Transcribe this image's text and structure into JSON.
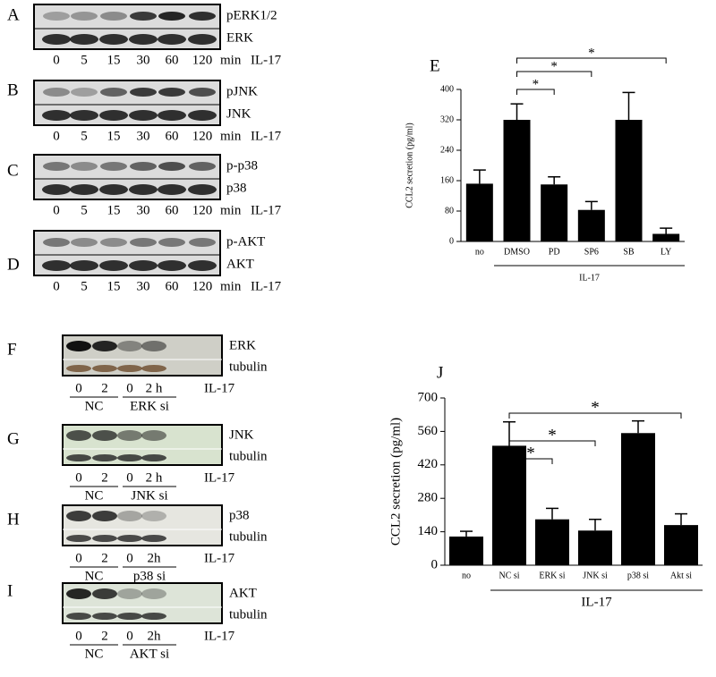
{
  "chart_data": [
    {
      "type": "bar",
      "panel": "E",
      "y_label": "CCL2 secretion (pg/ml)",
      "categories": [
        "no",
        "DMSO",
        "PD",
        "SP6",
        "SB",
        "LY"
      ],
      "values": [
        152,
        320,
        150,
        83,
        320,
        20
      ],
      "errors": [
        36,
        42,
        20,
        22,
        72,
        15
      ],
      "group_label": "IL-17",
      "ylim": [
        0,
        400
      ],
      "yticks": [
        0,
        80,
        160,
        240,
        320,
        400
      ],
      "color": "#000000",
      "significance": [
        {
          "from": "DMSO",
          "to": "PD",
          "label": "*"
        },
        {
          "from": "DMSO",
          "to": "SP6",
          "label": "*"
        },
        {
          "from": "DMSO",
          "to": "LY",
          "label": "*"
        }
      ]
    },
    {
      "type": "bar",
      "panel": "J",
      "y_label": "CCL2 secretion (pg/ml)",
      "categories": [
        "no",
        "NC si",
        "ERK si",
        "JNK si",
        "p38 si",
        "Akt si"
      ],
      "values": [
        120,
        500,
        192,
        145,
        553,
        168
      ],
      "errors": [
        22,
        100,
        46,
        47,
        51,
        47
      ],
      "group_label": "IL-17",
      "ylim": [
        0,
        700
      ],
      "yticks": [
        0,
        140,
        280,
        420,
        560,
        700
      ],
      "color": "#000000",
      "significance": [
        {
          "from": "NC si",
          "to": "ERK si",
          "label": "*"
        },
        {
          "from": "NC si",
          "to": "JNK si",
          "label": "*"
        },
        {
          "from": "NC si",
          "to": "Akt si",
          "label": "*"
        }
      ]
    }
  ],
  "blots": [
    {
      "panel": "A",
      "bands": [
        "pERK1/2",
        "ERK"
      ],
      "lanes": [
        "0",
        "5",
        "15",
        "30",
        "60",
        "120"
      ],
      "unit": "min",
      "treatment": "IL-17"
    },
    {
      "panel": "B",
      "bands": [
        "pJNK",
        "JNK"
      ],
      "lanes": [
        "0",
        "5",
        "15",
        "30",
        "60",
        "120"
      ],
      "unit": "min",
      "treatment": "IL-17"
    },
    {
      "panel": "C",
      "bands": [
        "p-p38",
        "p38"
      ],
      "lanes": [
        "0",
        "5",
        "15",
        "30",
        "60",
        "120"
      ],
      "unit": "min",
      "treatment": "IL-17"
    },
    {
      "panel": "D",
      "bands": [
        "p-AKT",
        "AKT"
      ],
      "lanes": [
        "0",
        "5",
        "15",
        "30",
        "60",
        "120"
      ],
      "unit": "min",
      "treatment": "IL-17"
    }
  ],
  "knockdowns": [
    {
      "panel": "F",
      "bands": [
        "ERK",
        "tubulin"
      ],
      "lanes": [
        "0",
        "2",
        "0",
        "2 h"
      ],
      "treatment": "IL-17",
      "groups": [
        "NC",
        "ERK si"
      ]
    },
    {
      "panel": "G",
      "bands": [
        "JNK",
        "tubulin"
      ],
      "lanes": [
        "0",
        "2",
        "0",
        "2 h"
      ],
      "treatment": "IL-17",
      "groups": [
        "NC",
        "JNK si"
      ]
    },
    {
      "panel": "H",
      "bands": [
        "p38",
        "tubulin"
      ],
      "lanes": [
        "0",
        "2",
        "0",
        "2h"
      ],
      "treatment": "IL-17",
      "groups": [
        "NC",
        "p38 si"
      ]
    },
    {
      "panel": "I",
      "bands": [
        "AKT",
        "tubulin"
      ],
      "lanes": [
        "0",
        "2",
        "0",
        "2h"
      ],
      "treatment": "IL-17",
      "groups": [
        "NC",
        "AKT si"
      ]
    }
  ]
}
